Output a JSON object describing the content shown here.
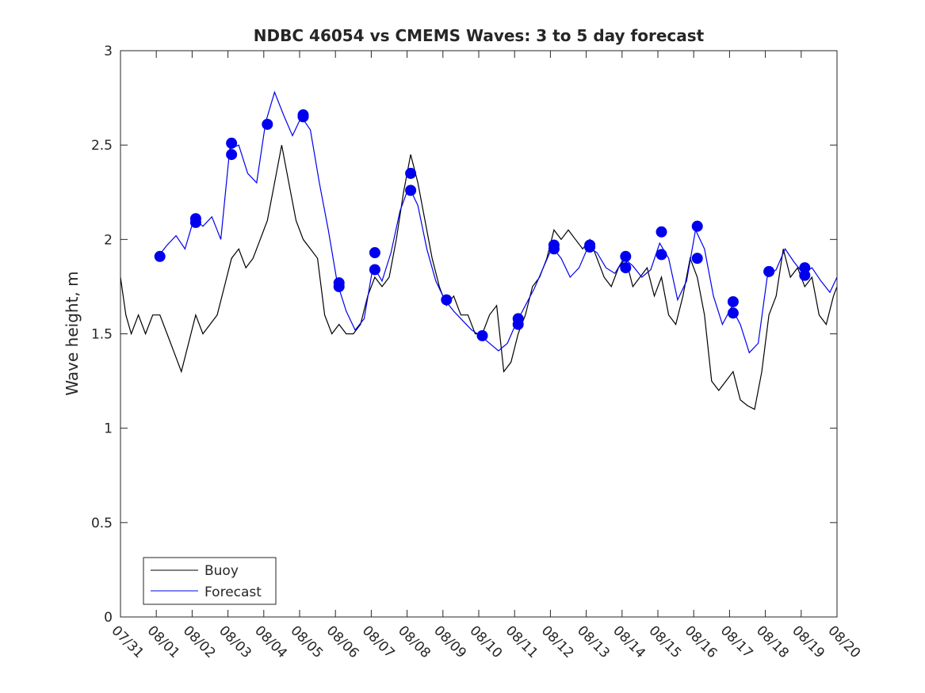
{
  "chart_data": {
    "type": "line",
    "title": "NDBC 46054 vs CMEMS Waves: 3 to 5 day forecast",
    "xlabel": "",
    "ylabel": "Wave height, m",
    "xlim": [
      0,
      20
    ],
    "ylim": [
      0,
      3
    ],
    "x_tick_labels": [
      "07/31",
      "08/01",
      "08/02",
      "08/03",
      "08/04",
      "08/05",
      "08/06",
      "08/07",
      "08/08",
      "08/09",
      "08/10",
      "08/11",
      "08/12",
      "08/13",
      "08/14",
      "08/15",
      "08/16",
      "08/17",
      "08/18",
      "08/19",
      "08/20"
    ],
    "y_ticks": [
      0,
      0.5,
      1,
      1.5,
      2,
      2.5,
      3
    ],
    "y_tick_labels": [
      "0",
      "0.5",
      "1",
      "1.5",
      "2",
      "2.5",
      "3"
    ],
    "grid": false,
    "legend_position": "bottom-left",
    "series": [
      {
        "name": "Buoy",
        "color": "#000000",
        "points": [
          [
            0.0,
            1.8
          ],
          [
            0.15,
            1.6
          ],
          [
            0.3,
            1.5
          ],
          [
            0.5,
            1.6
          ],
          [
            0.7,
            1.5
          ],
          [
            0.9,
            1.6
          ],
          [
            1.1,
            1.6
          ],
          [
            1.3,
            1.5
          ],
          [
            1.5,
            1.4
          ],
          [
            1.7,
            1.3
          ],
          [
            1.9,
            1.45
          ],
          [
            2.1,
            1.6
          ],
          [
            2.3,
            1.5
          ],
          [
            2.5,
            1.55
          ],
          [
            2.7,
            1.6
          ],
          [
            2.9,
            1.75
          ],
          [
            3.1,
            1.9
          ],
          [
            3.3,
            1.95
          ],
          [
            3.5,
            1.85
          ],
          [
            3.7,
            1.9
          ],
          [
            3.9,
            2.0
          ],
          [
            4.1,
            2.1
          ],
          [
            4.3,
            2.3
          ],
          [
            4.5,
            2.5
          ],
          [
            4.7,
            2.3
          ],
          [
            4.9,
            2.1
          ],
          [
            5.1,
            2.0
          ],
          [
            5.3,
            1.95
          ],
          [
            5.5,
            1.9
          ],
          [
            5.7,
            1.6
          ],
          [
            5.9,
            1.5
          ],
          [
            6.1,
            1.55
          ],
          [
            6.3,
            1.5
          ],
          [
            6.5,
            1.5
          ],
          [
            6.7,
            1.55
          ],
          [
            6.9,
            1.7
          ],
          [
            7.1,
            1.8
          ],
          [
            7.3,
            1.75
          ],
          [
            7.5,
            1.8
          ],
          [
            7.7,
            2.0
          ],
          [
            7.9,
            2.25
          ],
          [
            8.1,
            2.45
          ],
          [
            8.3,
            2.3
          ],
          [
            8.5,
            2.1
          ],
          [
            8.7,
            1.9
          ],
          [
            8.9,
            1.75
          ],
          [
            9.1,
            1.65
          ],
          [
            9.3,
            1.7
          ],
          [
            9.5,
            1.6
          ],
          [
            9.7,
            1.6
          ],
          [
            9.9,
            1.5
          ],
          [
            10.1,
            1.5
          ],
          [
            10.3,
            1.6
          ],
          [
            10.5,
            1.65
          ],
          [
            10.7,
            1.3
          ],
          [
            10.9,
            1.35
          ],
          [
            11.1,
            1.5
          ],
          [
            11.3,
            1.6
          ],
          [
            11.5,
            1.75
          ],
          [
            11.7,
            1.8
          ],
          [
            11.9,
            1.9
          ],
          [
            12.1,
            2.05
          ],
          [
            12.3,
            2.0
          ],
          [
            12.5,
            2.05
          ],
          [
            12.7,
            2.0
          ],
          [
            12.9,
            1.95
          ],
          [
            13.1,
            2.0
          ],
          [
            13.3,
            1.9
          ],
          [
            13.5,
            1.8
          ],
          [
            13.7,
            1.75
          ],
          [
            13.9,
            1.85
          ],
          [
            14.1,
            1.9
          ],
          [
            14.3,
            1.75
          ],
          [
            14.5,
            1.8
          ],
          [
            14.7,
            1.85
          ],
          [
            14.9,
            1.7
          ],
          [
            15.1,
            1.8
          ],
          [
            15.3,
            1.6
          ],
          [
            15.5,
            1.55
          ],
          [
            15.7,
            1.7
          ],
          [
            15.9,
            1.9
          ],
          [
            16.1,
            1.8
          ],
          [
            16.3,
            1.6
          ],
          [
            16.5,
            1.25
          ],
          [
            16.7,
            1.2
          ],
          [
            16.9,
            1.25
          ],
          [
            17.1,
            1.3
          ],
          [
            17.3,
            1.15
          ],
          [
            17.5,
            1.12
          ],
          [
            17.7,
            1.1
          ],
          [
            17.9,
            1.3
          ],
          [
            18.1,
            1.6
          ],
          [
            18.3,
            1.7
          ],
          [
            18.5,
            1.95
          ],
          [
            18.7,
            1.8
          ],
          [
            18.9,
            1.85
          ],
          [
            19.1,
            1.75
          ],
          [
            19.3,
            1.8
          ],
          [
            19.5,
            1.6
          ],
          [
            19.7,
            1.55
          ],
          [
            19.9,
            1.7
          ],
          [
            20.0,
            1.75
          ]
        ]
      },
      {
        "name": "Forecast",
        "color": "#0000ee",
        "points": [
          [
            1.05,
            1.91
          ],
          [
            1.3,
            1.97
          ],
          [
            1.55,
            2.02
          ],
          [
            1.8,
            1.95
          ],
          [
            2.05,
            2.11
          ],
          [
            2.3,
            2.07
          ],
          [
            2.55,
            2.12
          ],
          [
            2.8,
            2.0
          ],
          [
            3.05,
            2.48
          ],
          [
            3.3,
            2.5
          ],
          [
            3.55,
            2.35
          ],
          [
            3.8,
            2.3
          ],
          [
            4.05,
            2.62
          ],
          [
            4.3,
            2.78
          ],
          [
            4.55,
            2.66
          ],
          [
            4.8,
            2.55
          ],
          [
            5.05,
            2.65
          ],
          [
            5.3,
            2.58
          ],
          [
            5.55,
            2.3
          ],
          [
            5.8,
            2.05
          ],
          [
            6.05,
            1.77
          ],
          [
            6.3,
            1.62
          ],
          [
            6.55,
            1.52
          ],
          [
            6.8,
            1.58
          ],
          [
            7.05,
            1.86
          ],
          [
            7.3,
            1.78
          ],
          [
            7.55,
            1.93
          ],
          [
            7.8,
            2.15
          ],
          [
            8.05,
            2.28
          ],
          [
            8.3,
            2.18
          ],
          [
            8.55,
            1.95
          ],
          [
            8.8,
            1.78
          ],
          [
            9.05,
            1.68
          ],
          [
            9.3,
            1.62
          ],
          [
            9.55,
            1.57
          ],
          [
            9.8,
            1.52
          ],
          [
            10.05,
            1.49
          ],
          [
            10.3,
            1.45
          ],
          [
            10.55,
            1.41
          ],
          [
            10.8,
            1.45
          ],
          [
            11.05,
            1.56
          ],
          [
            11.3,
            1.65
          ],
          [
            11.55,
            1.74
          ],
          [
            11.8,
            1.85
          ],
          [
            12.05,
            1.96
          ],
          [
            12.3,
            1.9
          ],
          [
            12.55,
            1.8
          ],
          [
            12.8,
            1.85
          ],
          [
            13.05,
            1.96
          ],
          [
            13.3,
            1.93
          ],
          [
            13.55,
            1.85
          ],
          [
            13.8,
            1.82
          ],
          [
            14.05,
            1.9
          ],
          [
            14.3,
            1.86
          ],
          [
            14.55,
            1.8
          ],
          [
            14.8,
            1.84
          ],
          [
            15.05,
            1.98
          ],
          [
            15.3,
            1.9
          ],
          [
            15.55,
            1.68
          ],
          [
            15.8,
            1.78
          ],
          [
            16.05,
            2.05
          ],
          [
            16.3,
            1.95
          ],
          [
            16.55,
            1.7
          ],
          [
            16.8,
            1.55
          ],
          [
            17.05,
            1.64
          ],
          [
            17.3,
            1.55
          ],
          [
            17.55,
            1.4
          ],
          [
            17.8,
            1.45
          ],
          [
            18.05,
            1.8
          ],
          [
            18.3,
            1.84
          ],
          [
            18.55,
            1.95
          ],
          [
            18.8,
            1.88
          ],
          [
            19.05,
            1.82
          ],
          [
            19.3,
            1.85
          ],
          [
            19.55,
            1.78
          ],
          [
            19.8,
            1.72
          ],
          [
            20.0,
            1.8
          ]
        ]
      }
    ],
    "forecast_markers": [
      [
        1.1,
        1.91
      ],
      [
        2.1,
        2.09
      ],
      [
        2.1,
        2.11
      ],
      [
        3.1,
        2.45
      ],
      [
        3.1,
        2.51
      ],
      [
        4.1,
        2.61
      ],
      [
        5.1,
        2.65
      ],
      [
        5.1,
        2.66
      ],
      [
        6.1,
        1.75
      ],
      [
        6.1,
        1.77
      ],
      [
        7.1,
        1.84
      ],
      [
        7.1,
        1.93
      ],
      [
        8.1,
        2.26
      ],
      [
        8.1,
        2.35
      ],
      [
        9.1,
        1.68
      ],
      [
        10.1,
        1.49
      ],
      [
        11.1,
        1.55
      ],
      [
        11.1,
        1.58
      ],
      [
        12.1,
        1.95
      ],
      [
        12.1,
        1.97
      ],
      [
        13.1,
        1.96
      ],
      [
        13.1,
        1.97
      ],
      [
        14.1,
        1.85
      ],
      [
        14.1,
        1.91
      ],
      [
        15.1,
        1.92
      ],
      [
        15.1,
        2.04
      ],
      [
        16.1,
        1.9
      ],
      [
        16.1,
        2.07
      ],
      [
        17.1,
        1.61
      ],
      [
        17.1,
        1.67
      ],
      [
        18.1,
        1.83
      ],
      [
        19.1,
        1.81
      ],
      [
        19.1,
        1.85
      ]
    ]
  }
}
